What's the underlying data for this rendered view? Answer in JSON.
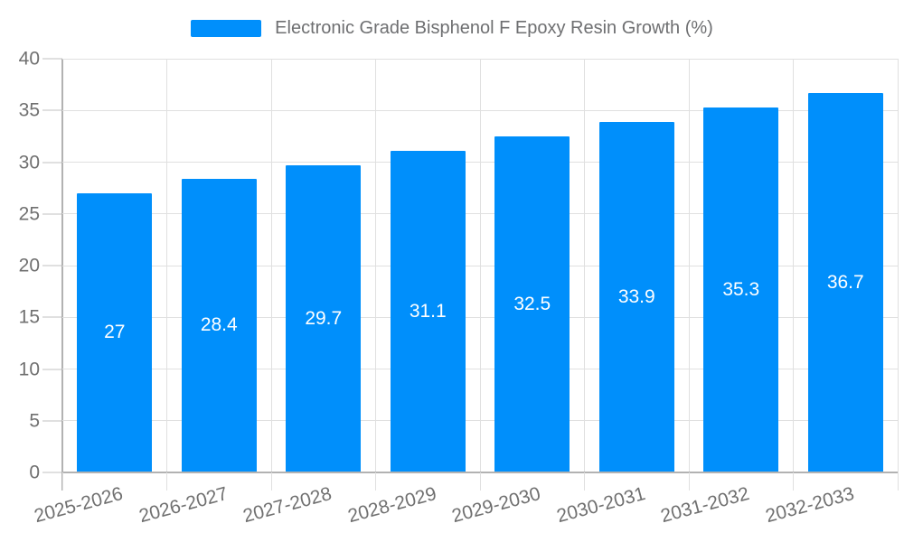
{
  "header": {
    "legend_label": "Electronic Grade Bisphenol F Epoxy Resin Growth (%)"
  },
  "chart_data": {
    "type": "bar",
    "title": "Electronic Grade Bisphenol F Epoxy Resin Growth (%)",
    "categories": [
      "2025-2026",
      "2026-2027",
      "2027-2028",
      "2028-2029",
      "2029-2030",
      "2030-2031",
      "2031-2032",
      "2032-2033"
    ],
    "series": [
      {
        "name": "Electronic Grade Bisphenol F Epoxy Resin Growth (%)",
        "values": [
          27,
          28.4,
          29.7,
          31.1,
          32.5,
          33.9,
          35.3,
          36.7
        ]
      }
    ],
    "data_labels": [
      "27",
      "28.4",
      "29.7",
      "31.1",
      "32.5",
      "33.9",
      "35.3",
      "36.7"
    ],
    "xlabel": "",
    "ylabel": "",
    "ylim": [
      0,
      40
    ],
    "yticks": [
      0,
      5,
      10,
      15,
      20,
      25,
      30,
      35,
      40
    ],
    "grid": "both",
    "legend_position": "top",
    "x_label_rotation_deg": -15
  },
  "colors": {
    "bar": "#008FFB",
    "grid": "#e0e0e0",
    "axis_line": "#b2b2b2",
    "tick": "#e0e0e0",
    "axis_label_text": "#707070",
    "legend_text": "#6e6f71",
    "data_label_text": "#ffffff",
    "background": "#ffffff"
  }
}
